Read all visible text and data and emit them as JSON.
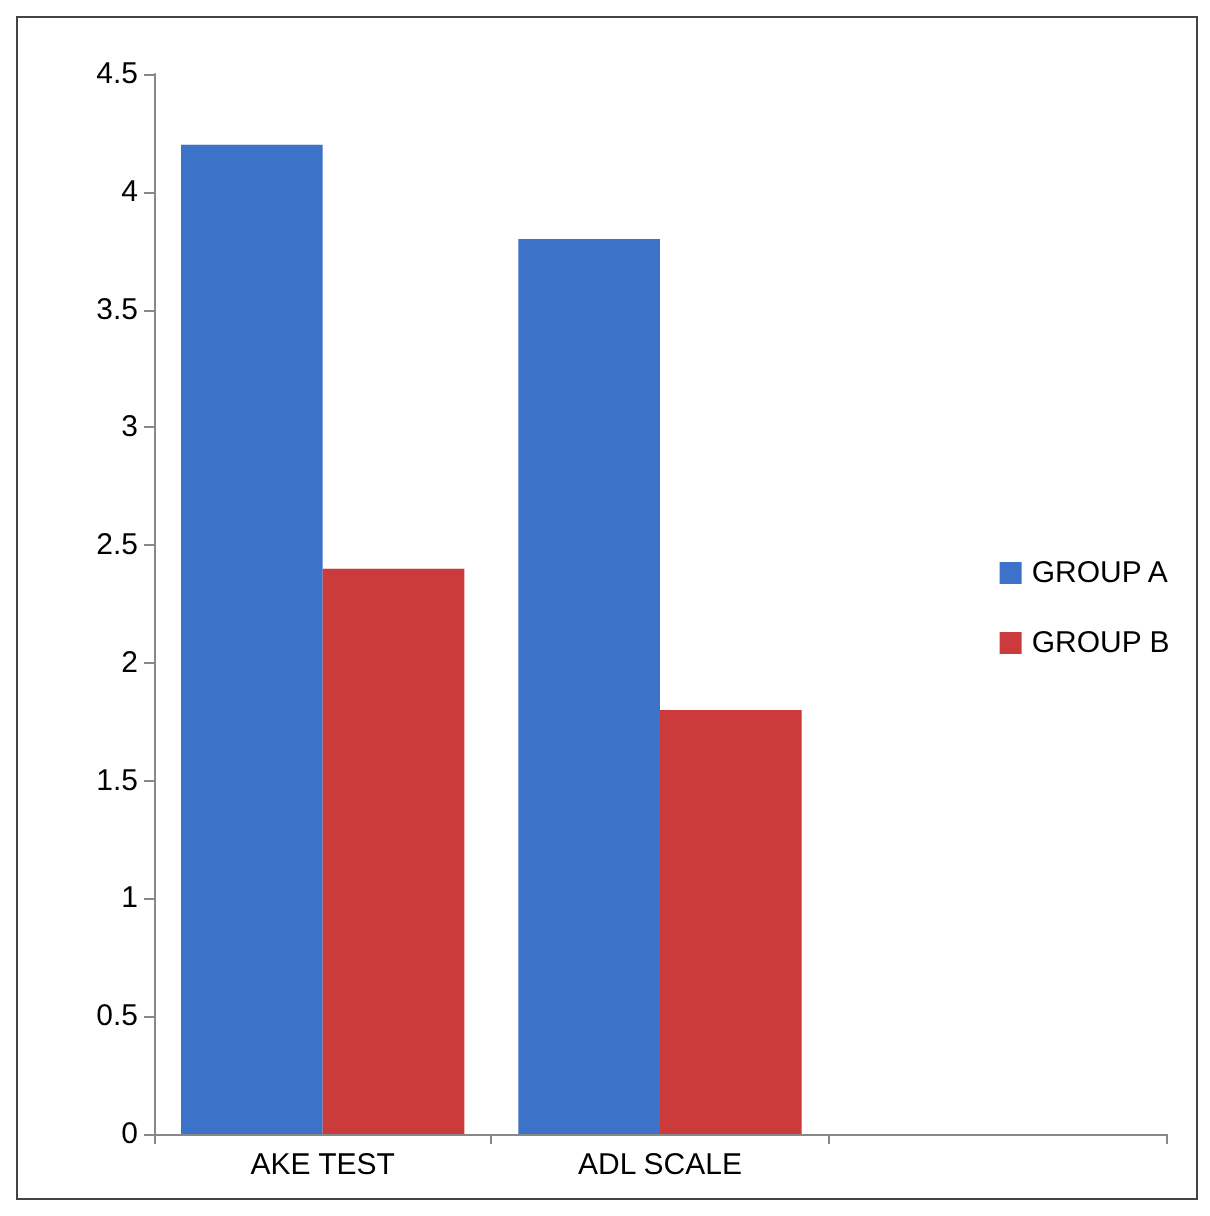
{
  "chart_data": {
    "type": "bar",
    "categories": [
      "AKE TEST",
      "ADL SCALE",
      null
    ],
    "series": [
      {
        "name": "GROUP A",
        "color": "#3c72c8",
        "values": [
          4.2,
          3.8,
          null
        ]
      },
      {
        "name": "GROUP B",
        "color": "#cc3b3b",
        "values": [
          2.4,
          1.8,
          null
        ]
      }
    ],
    "ylim": [
      0,
      4.5
    ],
    "yticks": [
      0,
      0.5,
      1,
      1.5,
      2,
      2.5,
      3,
      3.5,
      4,
      4.5
    ],
    "grid": false,
    "legend": "right"
  }
}
